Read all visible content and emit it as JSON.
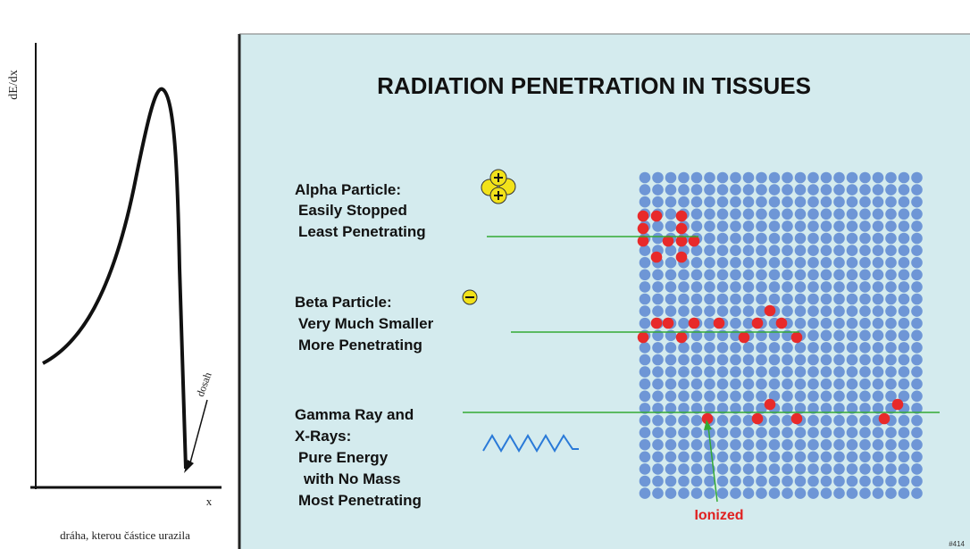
{
  "left_panel": {
    "y_axis_label": "dE/dx",
    "range_label": "dosah",
    "x_axis_label": "x",
    "caption": "dráha, kterou částice urazila"
  },
  "right_panel": {
    "title": "RADIATION PENETRATION IN TISSUES",
    "alpha": [
      "Alpha Particle:",
      "Easily Stopped",
      "Least Penetrating"
    ],
    "beta": [
      "Beta Particle:",
      "Very Much Smaller",
      "More Penetrating"
    ],
    "gamma": [
      "Gamma Ray and",
      "X-Rays:",
      "Pure Energy",
      "with No Mass",
      "Most Penetrating"
    ],
    "ionized_label": "Ionized",
    "code": "#414"
  }
}
